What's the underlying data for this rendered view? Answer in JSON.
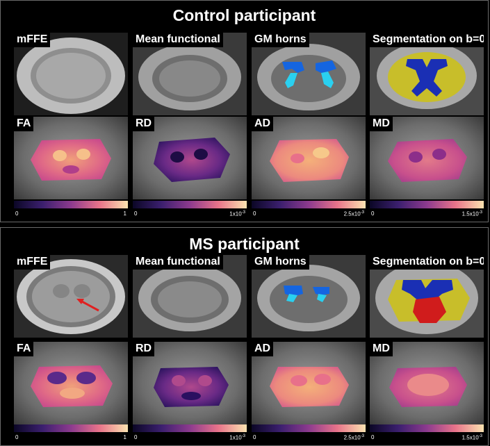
{
  "panels": [
    {
      "title": "Control participant",
      "row1": [
        "mFFE",
        "Mean functional",
        "GM horns",
        "Segmentation on b=0"
      ],
      "row2": [
        "FA",
        "RD",
        "AD",
        "MD"
      ],
      "scales": [
        {
          "min": "0",
          "max": "1"
        },
        {
          "min": "0",
          "max": "1x10",
          "exp": "-3"
        },
        {
          "min": "0",
          "max": "2.5x10",
          "exp": "-3"
        },
        {
          "min": "0",
          "max": "1.5x10",
          "exp": "-3"
        }
      ]
    },
    {
      "title": "MS participant",
      "row1": [
        "mFFE",
        "Mean functional",
        "GM horns",
        "Segmentation on b=0"
      ],
      "row2": [
        "FA",
        "RD",
        "AD",
        "MD"
      ],
      "scales": [
        {
          "min": "0",
          "max": "1"
        },
        {
          "min": "0",
          "max": "1x10",
          "exp": "-3"
        },
        {
          "min": "0",
          "max": "2.5x10",
          "exp": "-3"
        },
        {
          "min": "0",
          "max": "1.5x10",
          "exp": "-3"
        }
      ]
    }
  ],
  "colors": {
    "segmentation_white_matter": "#c8be2a",
    "segmentation_gray_matter": "#1a2fb4",
    "segmentation_lesion": "#d01c1c",
    "gm_horn_dorsal": "#1565e0",
    "gm_horn_ventral": "#2ad0f0",
    "lesion_arrow": "#e02020"
  }
}
